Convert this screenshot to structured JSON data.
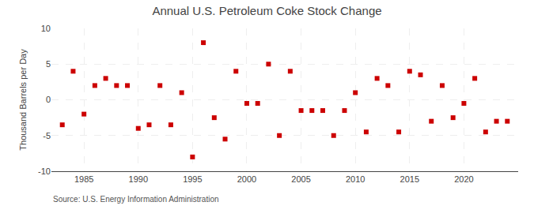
{
  "chart_data": {
    "type": "scatter",
    "title": "Annual U.S. Petroleum Coke Stock Change",
    "ylabel": "Thousand Barrels per Day",
    "annotations": [
      "Source: U.S. Energy Information Administration"
    ],
    "x": [
      1983,
      1984,
      1985,
      1986,
      1987,
      1988,
      1989,
      1990,
      1991,
      1992,
      1993,
      1994,
      1995,
      1996,
      1997,
      1998,
      1999,
      2000,
      2001,
      2002,
      2003,
      2004,
      2005,
      2006,
      2007,
      2008,
      2009,
      2010,
      2011,
      2012,
      2013,
      2014,
      2015,
      2016,
      2017,
      2018,
      2019,
      2020,
      2021,
      2022,
      2023,
      2024
    ],
    "values": [
      -3.5,
      4.0,
      -2.0,
      2.0,
      3.0,
      2.0,
      2.0,
      -4.0,
      -3.5,
      2.0,
      -3.5,
      1.0,
      -8.0,
      8.0,
      -2.5,
      -5.5,
      4.0,
      -0.5,
      -0.5,
      5.0,
      -5.0,
      4.0,
      -1.5,
      -1.5,
      -1.5,
      -5.0,
      -1.5,
      1.0,
      -4.5,
      3.0,
      2.0,
      -4.5,
      4.0,
      3.5,
      -3.0,
      2.0,
      -2.5,
      -0.5,
      3.0,
      -4.5,
      -3.0,
      -3.0
    ],
    "color": "#cc0000",
    "marker": "square",
    "xlim": [
      1982,
      2025
    ],
    "xticks": [
      1985,
      1990,
      1995,
      2000,
      2005,
      2010,
      2015,
      2020
    ],
    "ylim": [
      -10,
      10
    ],
    "yticks": [
      -10,
      -5,
      0,
      5,
      10
    ],
    "grid": true
  }
}
